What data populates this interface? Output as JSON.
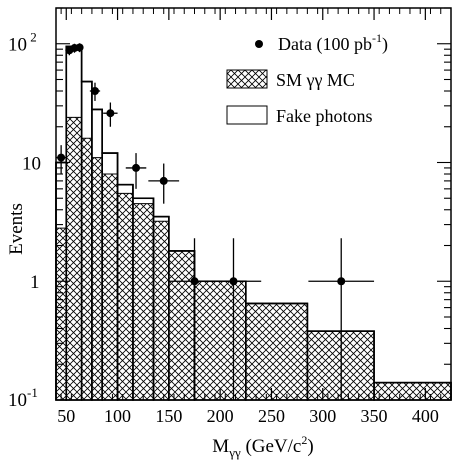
{
  "chart_data": {
    "type": "histogram",
    "yscale": "log",
    "xlabel_main": "M",
    "xlabel_sub": "γγ",
    "xlabel_unit": " (GeV/c",
    "xlabel_unit_sup": "2",
    "xlabel_unit_close": ")",
    "ylabel": "Events",
    "xlim": [
      40,
      425
    ],
    "ylim": [
      0.1,
      200
    ],
    "x_ticks": [
      50,
      100,
      150,
      200,
      250,
      300,
      350,
      400
    ],
    "x_tick_labels": [
      "50",
      "100",
      "150",
      "200",
      "250",
      "300",
      "350",
      "400"
    ],
    "y_tick_labels": [
      {
        "value": 100,
        "base": "10",
        "exp": " 2"
      },
      {
        "value": 10,
        "base": "10",
        "exp": ""
      },
      {
        "value": 1,
        "base": "1",
        "exp": ""
      },
      {
        "value": 0.1,
        "base": "10",
        "exp": "-1"
      }
    ],
    "legend": {
      "position": "top-right",
      "entries": [
        {
          "kind": "marker",
          "label_main": "Data (100 pb",
          "label_sup": "-1",
          "label_close": ")"
        },
        {
          "kind": "hatched",
          "label_main": "SM γγ MC",
          "label_sup": "",
          "label_close": ""
        },
        {
          "kind": "open",
          "label_main": "Fake photons",
          "label_sup": "",
          "label_close": ""
        }
      ]
    },
    "series": [
      {
        "name": "SM γγ MC",
        "style": "hatched",
        "bins": [
          {
            "x0": 40,
            "x1": 50,
            "y": 2.8
          },
          {
            "x0": 50,
            "x1": 65,
            "y": 24
          },
          {
            "x0": 65,
            "x1": 75,
            "y": 16
          },
          {
            "x0": 75,
            "x1": 85,
            "y": 11
          },
          {
            "x0": 85,
            "x1": 100,
            "y": 8
          },
          {
            "x0": 100,
            "x1": 115,
            "y": 5.5
          },
          {
            "x0": 115,
            "x1": 135,
            "y": 4.5
          },
          {
            "x0": 135,
            "x1": 150,
            "y": 3.2
          },
          {
            "x0": 150,
            "x1": 175,
            "y": 1.8
          },
          {
            "x0": 175,
            "x1": 225,
            "y": 1.0
          },
          {
            "x0": 225,
            "x1": 285,
            "y": 0.65
          },
          {
            "x0": 285,
            "x1": 350,
            "y": 0.38
          },
          {
            "x0": 350,
            "x1": 425,
            "y": 0.14
          }
        ]
      },
      {
        "name": "Fake photons",
        "style": "open",
        "bins": [
          {
            "x0": 40,
            "x1": 50,
            "y": 10
          },
          {
            "x0": 50,
            "x1": 65,
            "y": 95
          },
          {
            "x0": 65,
            "x1": 75,
            "y": 48
          },
          {
            "x0": 75,
            "x1": 85,
            "y": 28
          },
          {
            "x0": 85,
            "x1": 100,
            "y": 12
          },
          {
            "x0": 100,
            "x1": 115,
            "y": 6.5
          },
          {
            "x0": 115,
            "x1": 135,
            "y": 5.0
          },
          {
            "x0": 135,
            "x1": 150,
            "y": 3.5
          },
          {
            "x0": 150,
            "x1": 175,
            "y": 1.8
          },
          {
            "x0": 175,
            "x1": 225,
            "y": 1.0
          },
          {
            "x0": 225,
            "x1": 285,
            "y": 0.65
          },
          {
            "x0": 285,
            "x1": 350,
            "y": 0.38
          },
          {
            "x0": 350,
            "x1": 425,
            "y": 0.14
          }
        ]
      },
      {
        "name": "Data (100 pb-1)",
        "style": "points",
        "points": [
          {
            "x": 45,
            "y": 11,
            "xerr": 5,
            "ylo": 8,
            "yhi": 14
          },
          {
            "x": 53,
            "y": 88,
            "xerr": 3,
            "ylo": 80,
            "yhi": 96
          },
          {
            "x": 58,
            "y": 92,
            "xerr": 3,
            "ylo": 84,
            "yhi": 100
          },
          {
            "x": 63,
            "y": 93,
            "xerr": 3,
            "ylo": 85,
            "yhi": 101
          },
          {
            "x": 78,
            "y": 40,
            "xerr": 5,
            "ylo": 33,
            "yhi": 47
          },
          {
            "x": 93,
            "y": 26,
            "xerr": 7,
            "ylo": 20,
            "yhi": 32
          },
          {
            "x": 118,
            "y": 9,
            "xerr": 10,
            "ylo": 6,
            "yhi": 12
          },
          {
            "x": 145,
            "y": 7,
            "xerr": 15,
            "ylo": 4.5,
            "yhi": 9.8
          },
          {
            "x": 175,
            "y": 1.0,
            "xerr": 25,
            "ylo": 0.1,
            "yhi": 2.3
          },
          {
            "x": 213,
            "y": 1.0,
            "xerr": 27,
            "ylo": 0.1,
            "yhi": 2.3
          },
          {
            "x": 318,
            "y": 1.0,
            "xerr": 32,
            "ylo": 0.1,
            "yhi": 2.3
          }
        ]
      }
    ]
  }
}
